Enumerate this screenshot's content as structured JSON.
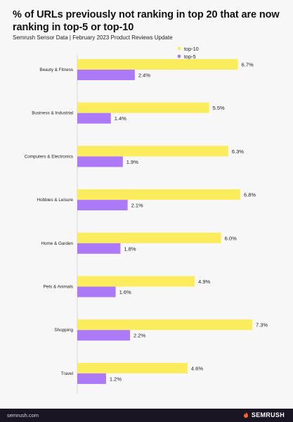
{
  "header": {
    "title": "% of URLs previously not ranking in top 20 that are now ranking in top-5 or top-10",
    "subtitle": "Semrush Sensor Data | February 2023 Product Reviews Update"
  },
  "footer": {
    "url": "semrush.com",
    "brand": "SEMRUSH"
  },
  "colors": {
    "top10": "#fbec5d",
    "top5": "#ad7af7",
    "background": "#f7f7f7",
    "footer": "#1a1522",
    "brand_accent": "#ff642d"
  },
  "chart_data": {
    "type": "bar",
    "orientation": "horizontal",
    "categories": [
      "Beauty & Fitness",
      "Business & Industrial",
      "Computers & Electronics",
      "Hobbies & Leisure",
      "Home & Garden",
      "Pets & Animals",
      "Shopping",
      "Travel"
    ],
    "series": [
      {
        "name": "top-10",
        "values": [
          6.7,
          5.5,
          6.3,
          6.8,
          6.0,
          4.9,
          7.3,
          4.6
        ],
        "labels": [
          "6.7%",
          "5.5%",
          "6.3%",
          "6.8%",
          "6.0%",
          "4.9%",
          "7.3%",
          "4.6%"
        ]
      },
      {
        "name": "top-5",
        "values": [
          2.4,
          1.4,
          1.9,
          2.1,
          1.8,
          1.6,
          2.2,
          1.2
        ],
        "labels": [
          "2.4%",
          "1.4%",
          "1.9%",
          "2.1%",
          "1.8%",
          "1.6%",
          "2.2%",
          "1.2%"
        ]
      }
    ],
    "xlim": [
      0,
      7.3
    ],
    "grid": false,
    "legend": "top-right"
  }
}
